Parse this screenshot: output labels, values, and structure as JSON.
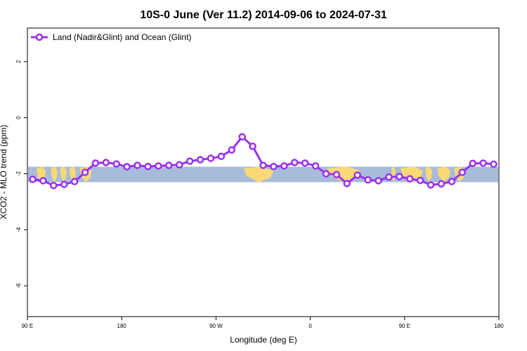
{
  "chart_data": {
    "type": "line",
    "title": "10S-0 June (Ver 11.2)   2014-09-06 to 2024-07-31",
    "xlabel": "Longitude (deg E)",
    "ylabel": "XCO2 - MLO trend (ppm)",
    "xlim": [
      90,
      450
    ],
    "ylim": [
      -7.1,
      3.2
    ],
    "x_ticks": [
      {
        "value": 90,
        "label": "90 E"
      },
      {
        "value": 162,
        "label": "180"
      },
      {
        "value": 234,
        "label": "90 W"
      },
      {
        "value": 306,
        "label": "0"
      },
      {
        "value": 378,
        "label": "90 E"
      },
      {
        "value": 450,
        "label": "180"
      }
    ],
    "y_ticks": [
      {
        "value": 2,
        "label": "2"
      },
      {
        "value": 0,
        "label": "0"
      },
      {
        "value": -2,
        "label": "-2"
      },
      {
        "value": -4,
        "label": "-4"
      },
      {
        "value": -6,
        "label": "-6"
      }
    ],
    "map_band": {
      "latitude_range": "10S-0",
      "ymin": -2.3,
      "ymax": -1.75,
      "ocean_color": "#a7bcda",
      "land_color": "#fcd977"
    },
    "series": [
      {
        "name": "Land (Nadir&Glint) and Ocean (Glint)",
        "color": "#9b30f0",
        "x": [
          94,
          102,
          110,
          118,
          126,
          134,
          142,
          150,
          158,
          166,
          174,
          182,
          190,
          198,
          206,
          214,
          222,
          230,
          238,
          246,
          254,
          262,
          270,
          278,
          286,
          294,
          302,
          310,
          318,
          326,
          334,
          342,
          350,
          358,
          366,
          374,
          382,
          390,
          398,
          406,
          414,
          422,
          430,
          438,
          446
        ],
        "y": [
          -2.2,
          -2.25,
          -2.42,
          -2.38,
          -2.28,
          -1.95,
          -1.62,
          -1.6,
          -1.65,
          -1.75,
          -1.7,
          -1.74,
          -1.72,
          -1.7,
          -1.68,
          -1.55,
          -1.5,
          -1.45,
          -1.38,
          -1.15,
          -0.68,
          -1.02,
          -1.7,
          -1.74,
          -1.72,
          -1.6,
          -1.62,
          -1.72,
          -2.0,
          -2.03,
          -2.35,
          -2.05,
          -2.22,
          -2.25,
          -2.12,
          -2.1,
          -2.18,
          -2.24,
          -2.4,
          -2.36,
          -2.28,
          -1.95,
          -1.63,
          -1.62,
          -1.66
        ]
      }
    ],
    "legend": {
      "position": "top-left"
    },
    "grid": false
  }
}
